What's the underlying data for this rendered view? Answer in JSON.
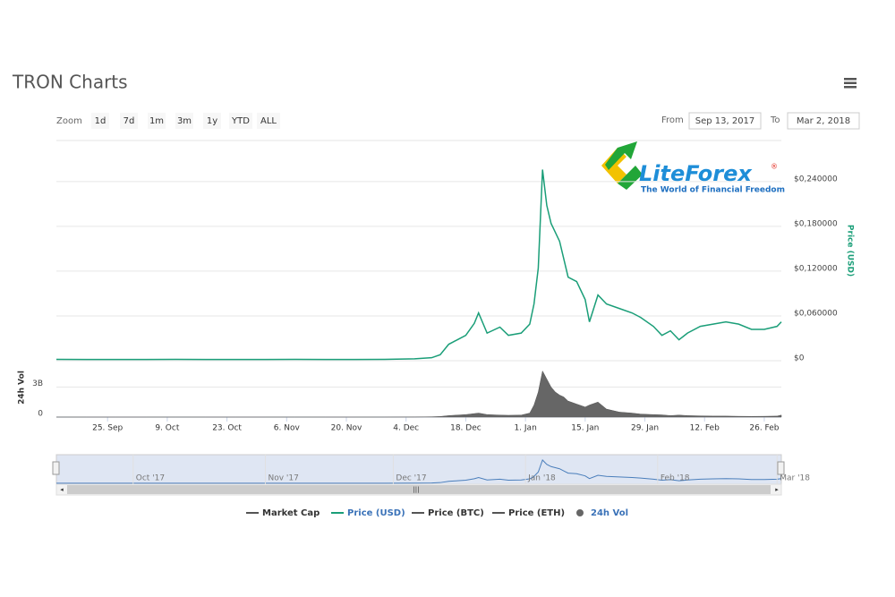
{
  "chart_data": {
    "type": "line",
    "title": "TRON Charts",
    "zoom_label": "Zoom",
    "zoom_buttons": [
      "1d",
      "7d",
      "1m",
      "3m",
      "1y",
      "YTD",
      "ALL"
    ],
    "from_label": "From",
    "from_date": "Sep 13, 2017",
    "to_label": "To",
    "to_date": "Mar 2, 2018",
    "logo": {
      "name": "LiteForex",
      "registered": "®",
      "slogan": "The World of Financial Freedom"
    },
    "y_label": "Price (USD)",
    "y2_label": "24h Vol",
    "x": [
      "2017-09-13",
      "2017-09-20",
      "2017-09-27",
      "2017-10-04",
      "2017-10-11",
      "2017-10-18",
      "2017-10-25",
      "2017-11-01",
      "2017-11-08",
      "2017-11-15",
      "2017-11-22",
      "2017-11-29",
      "2017-12-06",
      "2017-12-10",
      "2017-12-12",
      "2017-12-14",
      "2017-12-16",
      "2017-12-18",
      "2017-12-20",
      "2017-12-21",
      "2017-12-23",
      "2017-12-26",
      "2017-12-28",
      "2017-12-31",
      "2018-01-02",
      "2018-01-03",
      "2018-01-04",
      "2018-01-05",
      "2018-01-06",
      "2018-01-07",
      "2018-01-08",
      "2018-01-09",
      "2018-01-10",
      "2018-01-11",
      "2018-01-13",
      "2018-01-15",
      "2018-01-16",
      "2018-01-18",
      "2018-01-20",
      "2018-01-23",
      "2018-01-26",
      "2018-01-28",
      "2018-01-31",
      "2018-02-02",
      "2018-02-04",
      "2018-02-06",
      "2018-02-08",
      "2018-02-11",
      "2018-02-14",
      "2018-02-17",
      "2018-02-20",
      "2018-02-23",
      "2018-02-26",
      "2018-03-01",
      "2018-03-02"
    ],
    "series": [
      {
        "name": "Market Cap",
        "color": "#555555",
        "visible": false
      },
      {
        "name": "Price (USD)",
        "color": "#1a9e78",
        "visible": true,
        "values": [
          0.0018,
          0.0017,
          0.0016,
          0.0017,
          0.0018,
          0.0017,
          0.0016,
          0.0017,
          0.0018,
          0.0017,
          0.0017,
          0.0018,
          0.0025,
          0.004,
          0.008,
          0.022,
          0.028,
          0.034,
          0.05,
          0.064,
          0.037,
          0.045,
          0.034,
          0.037,
          0.049,
          0.076,
          0.124,
          0.256,
          0.208,
          0.184,
          0.172,
          0.16,
          0.136,
          0.112,
          0.106,
          0.082,
          0.052,
          0.088,
          0.076,
          0.07,
          0.064,
          0.058,
          0.046,
          0.034,
          0.04,
          0.028,
          0.037,
          0.046,
          0.049,
          0.052,
          0.049,
          0.042,
          0.042,
          0.046,
          0.052
        ]
      },
      {
        "name": "Price (BTC)",
        "color": "#555555",
        "visible": false
      },
      {
        "name": "Price (ETH)",
        "color": "#555555",
        "visible": false
      },
      {
        "name": "24h Vol",
        "color": "#666666",
        "visible": true,
        "axis": "y2",
        "values": [
          3000000,
          2000000,
          2000000,
          2000000,
          3000000,
          2000000,
          2000000,
          2000000,
          3000000,
          2000000,
          2000000,
          3000000,
          10000000,
          30000000,
          60000000,
          150000000,
          200000000,
          250000000,
          350000000,
          400000000,
          250000000,
          200000000,
          180000000,
          200000000,
          400000000,
          1200000000,
          2500000000,
          4600000000,
          3800000000,
          3000000000,
          2500000000,
          2200000000,
          2000000000,
          1600000000,
          1300000000,
          1000000000,
          1200000000,
          1500000000,
          800000000,
          500000000,
          400000000,
          300000000,
          250000000,
          220000000,
          150000000,
          200000000,
          150000000,
          120000000,
          100000000,
          100000000,
          80000000,
          70000000,
          80000000,
          100000000,
          200000000
        ]
      }
    ],
    "xlim": [
      "2017-09-13",
      "2018-03-02"
    ],
    "xticks": [
      {
        "value": "2017-09-25",
        "label": "25. Sep"
      },
      {
        "value": "2017-10-09",
        "label": "9. Oct"
      },
      {
        "value": "2017-10-23",
        "label": "23. Oct"
      },
      {
        "value": "2017-11-06",
        "label": "6. Nov"
      },
      {
        "value": "2017-11-20",
        "label": "20. Nov"
      },
      {
        "value": "2017-12-04",
        "label": "4. Dec"
      },
      {
        "value": "2017-12-18",
        "label": "18. Dec"
      },
      {
        "value": "2018-01-01",
        "label": "1. Jan"
      },
      {
        "value": "2018-01-15",
        "label": "15. Jan"
      },
      {
        "value": "2018-01-29",
        "label": "29. Jan"
      },
      {
        "value": "2018-02-12",
        "label": "12. Feb"
      },
      {
        "value": "2018-02-26",
        "label": "26. Feb"
      }
    ],
    "ylim": [
      0,
      0.295
    ],
    "yticks": [
      {
        "value": 0,
        "label": "$0"
      },
      {
        "value": 0.06,
        "label": "$0,060000"
      },
      {
        "value": 0.12,
        "label": "$0,120000"
      },
      {
        "value": 0.18,
        "label": "$0,180000"
      },
      {
        "value": 0.24,
        "label": "$0,240000"
      }
    ],
    "y2lim": [
      0,
      5000000000
    ],
    "y2ticks": [
      0,
      {
        "value": 3000000000,
        "label": "3B"
      }
    ],
    "navigator": {
      "xticks": [
        {
          "value": "2017-10-01",
          "label": "Oct '17"
        },
        {
          "value": "2017-11-01",
          "label": "Nov '17"
        },
        {
          "value": "2017-12-01",
          "label": "Dec '17"
        },
        {
          "value": "2018-01-01",
          "label": "Jan '18"
        },
        {
          "value": "2018-02-01",
          "label": "Feb '18"
        },
        {
          "value": "2018-03-01",
          "label": "Mar '18"
        }
      ]
    },
    "grid": true
  }
}
